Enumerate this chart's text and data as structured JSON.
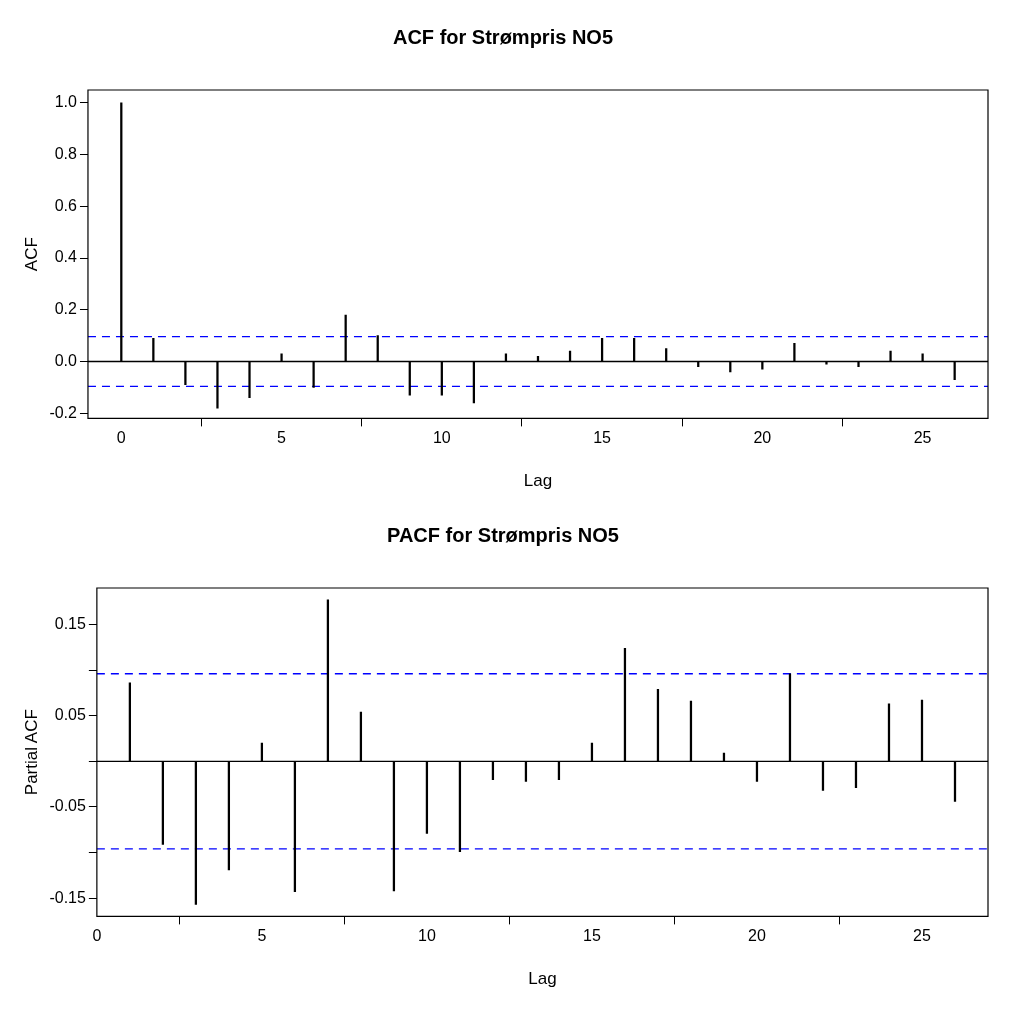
{
  "chart_data": [
    {
      "type": "bar",
      "title": "ACF for Strømpris NO5",
      "xlabel": "Lag",
      "ylabel": "ACF",
      "x": [
        0,
        1,
        2,
        3,
        4,
        5,
        6,
        7,
        8,
        9,
        10,
        11,
        12,
        13,
        14,
        15,
        16,
        17,
        18,
        19,
        20,
        21,
        22,
        23,
        24,
        25,
        26
      ],
      "series": [
        {
          "color": "#000000",
          "values": [
            1.0,
            0.09,
            -0.09,
            -0.18,
            -0.14,
            0.03,
            -0.1,
            0.18,
            0.1,
            -0.13,
            -0.13,
            -0.16,
            0.03,
            0.02,
            0.04,
            0.09,
            0.09,
            0.05,
            -0.02,
            -0.04,
            -0.03,
            0.07,
            -0.01,
            -0.02,
            0.04,
            0.03,
            -0.07
          ]
        }
      ],
      "xlim": [
        -1.04,
        27.04
      ],
      "xticks": [
        0,
        5,
        10,
        15,
        20,
        25
      ],
      "ylim": [
        -0.22,
        1.05
      ],
      "yticks": [
        {
          "value": -0.2,
          "label": "-0.2"
        },
        {
          "value": 0,
          "label": "0.0"
        },
        {
          "value": 0.2,
          "label": "0.2"
        },
        {
          "value": 0.4,
          "label": "0.4"
        },
        {
          "value": 0.6,
          "label": "0.6"
        },
        {
          "value": 0.8,
          "label": "0.8"
        },
        {
          "value": 1,
          "label": "1.0"
        }
      ],
      "ref_lines": [
        {
          "axis": "y",
          "value": 0,
          "color": "#000000",
          "line_style": "solid"
        },
        {
          "axis": "y",
          "value": 0.096,
          "color": "#0000ff",
          "line_style": "dashed"
        },
        {
          "axis": "y",
          "value": -0.096,
          "color": "#0000ff",
          "line_style": "dashed"
        }
      ],
      "grid": false,
      "legend": false
    },
    {
      "type": "bar",
      "title": "PACF for Strømpris NO5",
      "xlabel": "Lag",
      "ylabel": "Partial ACF",
      "x": [
        1,
        2,
        3,
        4,
        5,
        6,
        7,
        8,
        9,
        10,
        11,
        12,
        13,
        14,
        15,
        16,
        17,
        18,
        19,
        20,
        21,
        22,
        23,
        24,
        25,
        26
      ],
      "series": [
        {
          "color": "#000000",
          "values": [
            0.086,
            -0.091,
            -0.157,
            -0.119,
            0.02,
            -0.143,
            0.177,
            0.054,
            -0.142,
            -0.079,
            -0.099,
            -0.02,
            -0.022,
            -0.02,
            0.02,
            0.124,
            0.079,
            0.066,
            0.009,
            -0.022,
            0.096,
            -0.032,
            -0.029,
            0.063,
            0.067,
            -0.044
          ]
        }
      ],
      "xlim": [
        0,
        27
      ],
      "xticks": [
        0,
        5,
        10,
        15,
        20,
        25
      ],
      "ylim": [
        -0.17,
        0.19
      ],
      "yticks": [
        {
          "value": -0.15,
          "label": "-0.15"
        },
        {
          "value": -0.1,
          "label": null
        },
        {
          "value": -0.05,
          "label": "-0.05"
        },
        {
          "value": 0,
          "label": null
        },
        {
          "value": 0.05,
          "label": "0.05"
        },
        {
          "value": 0.1,
          "label": null
        },
        {
          "value": 0.15,
          "label": "0.15"
        }
      ],
      "ref_lines": [
        {
          "axis": "y",
          "value": 0,
          "color": "#000000",
          "line_style": "solid"
        },
        {
          "axis": "y",
          "value": 0.096,
          "color": "#0000ff",
          "line_style": "dashed"
        },
        {
          "axis": "y",
          "value": -0.096,
          "color": "#0000ff",
          "line_style": "dashed"
        }
      ],
      "grid": false,
      "legend": false
    }
  ]
}
